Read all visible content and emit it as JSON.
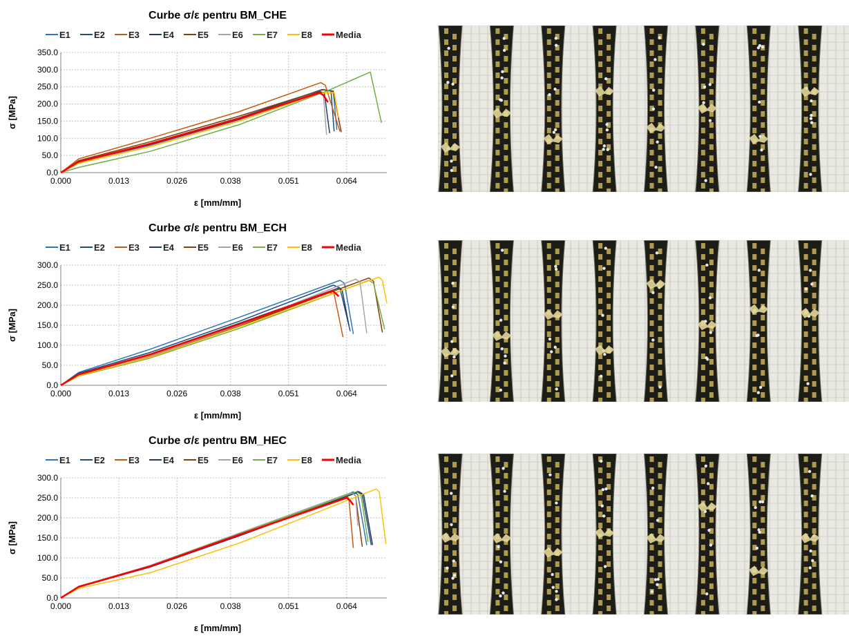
{
  "colors": {
    "E1": "#2e75b6",
    "E2": "#1f4e79",
    "E3": "#c55a11",
    "E4": "#203864",
    "E5": "#843c0c",
    "E6": "#a5a5a5",
    "E7": "#70ad47",
    "E8": "#ffc000",
    "Media": "#ff0000"
  },
  "chart_data": [
    {
      "type": "line",
      "title": "Curbe σ/ε pentru BM_CHE",
      "xlabel": "ε [mm/mm]",
      "ylabel": "σ [MPa]",
      "xlim": [
        0,
        0.073
      ],
      "ylim": [
        0,
        350
      ],
      "xticks": [
        "0.000",
        "0.013",
        "0.026",
        "0.038",
        "0.051",
        "0.064"
      ],
      "xtick_values": [
        0,
        0.013,
        0.026,
        0.038,
        0.051,
        0.064
      ],
      "yticks": [
        "0.0",
        "50.0",
        "100.0",
        "150.0",
        "200.0",
        "250.0",
        "300.0",
        "350.0"
      ],
      "grid": true,
      "legend": "top",
      "series": [
        {
          "name": "E1",
          "points": [
            [
              0,
              0
            ],
            [
              0.004,
              31
            ],
            [
              0.02,
              82
            ],
            [
              0.04,
              158
            ],
            [
              0.0585,
              242
            ],
            [
              0.061,
              238
            ],
            [
              0.0618,
              125
            ]
          ]
        },
        {
          "name": "E2",
          "points": [
            [
              0,
              0
            ],
            [
              0.004,
              32
            ],
            [
              0.02,
              85
            ],
            [
              0.04,
              160
            ],
            [
              0.0585,
              242
            ],
            [
              0.0605,
              237
            ],
            [
              0.0612,
              120
            ]
          ]
        },
        {
          "name": "E3",
          "points": [
            [
              0,
              0
            ],
            [
              0.004,
              40
            ],
            [
              0.02,
              100
            ],
            [
              0.04,
              178
            ],
            [
              0.0582,
              262
            ],
            [
              0.0592,
              255
            ],
            [
              0.0625,
              120
            ]
          ]
        },
        {
          "name": "E4",
          "points": [
            [
              0,
              0
            ],
            [
              0.004,
              30
            ],
            [
              0.02,
              80
            ],
            [
              0.04,
              155
            ],
            [
              0.058,
              236
            ],
            [
              0.059,
              232
            ],
            [
              0.0602,
              115
            ]
          ]
        },
        {
          "name": "E5",
          "points": [
            [
              0,
              0
            ],
            [
              0.004,
              35
            ],
            [
              0.02,
              90
            ],
            [
              0.04,
              165
            ],
            [
              0.0588,
              242
            ],
            [
              0.061,
              236
            ],
            [
              0.0628,
              118
            ]
          ]
        },
        {
          "name": "E6",
          "points": [
            [
              0,
              0
            ],
            [
              0.004,
              28
            ],
            [
              0.02,
              78
            ],
            [
              0.04,
              152
            ],
            [
              0.0575,
              232
            ],
            [
              0.0588,
              226
            ],
            [
              0.0595,
              110
            ]
          ]
        },
        {
          "name": "E7",
          "points": [
            [
              0,
              0
            ],
            [
              0.004,
              15
            ],
            [
              0.02,
              62
            ],
            [
              0.04,
              140
            ],
            [
              0.06,
              240
            ],
            [
              0.0693,
              293
            ],
            [
              0.0718,
              145
            ]
          ]
        },
        {
          "name": "E8",
          "points": [
            [
              0,
              0
            ],
            [
              0.004,
              27
            ],
            [
              0.02,
              75
            ],
            [
              0.04,
              150
            ],
            [
              0.058,
              232
            ],
            [
              0.0612,
              233
            ],
            [
              0.0622,
              160
            ]
          ]
        },
        {
          "name": "Media",
          "points": [
            [
              0,
              0
            ],
            [
              0.004,
              32
            ],
            [
              0.02,
              84
            ],
            [
              0.04,
              158
            ],
            [
              0.058,
              233
            ],
            [
              0.0588,
              225
            ],
            [
              0.0598,
              205
            ]
          ]
        }
      ]
    },
    {
      "type": "line",
      "title": "Curbe σ/ε pentru BM_ECH",
      "xlabel": "ε [mm/mm]",
      "ylabel": "σ [MPa]",
      "xlim": [
        0,
        0.073
      ],
      "ylim": [
        0,
        300
      ],
      "xticks": [
        "0.000",
        "0.013",
        "0.026",
        "0.038",
        "0.051",
        "0.064"
      ],
      "xtick_values": [
        0,
        0.013,
        0.026,
        0.038,
        0.051,
        0.064
      ],
      "yticks": [
        "0.0",
        "50.0",
        "100.0",
        "150.0",
        "200.0",
        "250.0",
        "300.0"
      ],
      "grid": true,
      "legend": "top",
      "series": [
        {
          "name": "E1",
          "points": [
            [
              0,
              0
            ],
            [
              0.004,
              32
            ],
            [
              0.02,
              90
            ],
            [
              0.04,
              170
            ],
            [
              0.0625,
              262
            ],
            [
              0.0635,
              255
            ],
            [
              0.0655,
              128
            ]
          ]
        },
        {
          "name": "E2",
          "points": [
            [
              0,
              0
            ],
            [
              0.004,
              30
            ],
            [
              0.02,
              82
            ],
            [
              0.04,
              160
            ],
            [
              0.061,
              250
            ],
            [
              0.0625,
              243
            ],
            [
              0.0648,
              135
            ]
          ]
        },
        {
          "name": "E3",
          "points": [
            [
              0,
              0
            ],
            [
              0.004,
              26
            ],
            [
              0.02,
              74
            ],
            [
              0.04,
              150
            ],
            [
              0.06,
              232
            ],
            [
              0.0612,
              228
            ],
            [
              0.0632,
              120
            ]
          ]
        },
        {
          "name": "E4",
          "points": [
            [
              0,
              0
            ],
            [
              0.004,
              27
            ],
            [
              0.02,
              78
            ],
            [
              0.04,
              155
            ],
            [
              0.062,
              242
            ],
            [
              0.063,
              238
            ],
            [
              0.0645,
              150
            ]
          ]
        },
        {
          "name": "E5",
          "points": [
            [
              0,
              0
            ],
            [
              0.004,
              25
            ],
            [
              0.02,
              72
            ],
            [
              0.04,
              148
            ],
            [
              0.069,
              268
            ],
            [
              0.07,
              260
            ],
            [
              0.072,
              132
            ]
          ]
        },
        {
          "name": "E6",
          "points": [
            [
              0,
              0
            ],
            [
              0.004,
              25
            ],
            [
              0.02,
              73
            ],
            [
              0.04,
              150
            ],
            [
              0.066,
              265
            ],
            [
              0.067,
              258
            ],
            [
              0.0685,
              130
            ]
          ]
        },
        {
          "name": "E7",
          "points": [
            [
              0,
              0
            ],
            [
              0.004,
              23
            ],
            [
              0.02,
              68
            ],
            [
              0.04,
              142
            ],
            [
              0.069,
              262
            ],
            [
              0.07,
              255
            ],
            [
              0.0725,
              140
            ]
          ]
        },
        {
          "name": "E8",
          "points": [
            [
              0,
              0
            ],
            [
              0.004,
              24
            ],
            [
              0.02,
              70
            ],
            [
              0.04,
              146
            ],
            [
              0.0712,
              270
            ],
            [
              0.072,
              262
            ],
            [
              0.073,
              205
            ]
          ]
        },
        {
          "name": "Media",
          "points": [
            [
              0,
              0
            ],
            [
              0.004,
              27
            ],
            [
              0.02,
              77
            ],
            [
              0.04,
              153
            ],
            [
              0.0608,
              236
            ],
            [
              0.0615,
              230
            ],
            [
              0.0622,
              222
            ]
          ]
        }
      ]
    },
    {
      "type": "line",
      "title": "Curbe σ/ε pentru BM_HEC",
      "xlabel": "ε [mm/mm]",
      "ylabel": "σ [MPa]",
      "xlim": [
        0,
        0.073
      ],
      "ylim": [
        0,
        300
      ],
      "xticks": [
        "0.000",
        "0.013",
        "0.026",
        "0.038",
        "0.051",
        "0.064"
      ],
      "xtick_values": [
        0,
        0.013,
        0.026,
        0.038,
        0.051,
        0.064
      ],
      "yticks": [
        "0.0",
        "50.0",
        "100.0",
        "150.0",
        "200.0",
        "250.0",
        "300.0"
      ],
      "grid": true,
      "legend": "top",
      "series": [
        {
          "name": "E1",
          "points": [
            [
              0,
              0
            ],
            [
              0.004,
              28
            ],
            [
              0.02,
              80
            ],
            [
              0.04,
              160
            ],
            [
              0.0655,
              265
            ],
            [
              0.0665,
              258
            ],
            [
              0.0685,
              132
            ]
          ]
        },
        {
          "name": "E2",
          "points": [
            [
              0,
              0
            ],
            [
              0.004,
              28
            ],
            [
              0.02,
              79
            ],
            [
              0.04,
              158
            ],
            [
              0.0665,
              266
            ],
            [
              0.0675,
              258
            ],
            [
              0.0695,
              132
            ]
          ]
        },
        {
          "name": "E3",
          "points": [
            [
              0,
              0
            ],
            [
              0.004,
              27
            ],
            [
              0.02,
              78
            ],
            [
              0.04,
              157
            ],
            [
              0.064,
              255
            ],
            [
              0.0645,
              248
            ],
            [
              0.0655,
              125
            ]
          ]
        },
        {
          "name": "E4",
          "points": [
            [
              0,
              0
            ],
            [
              0.004,
              27
            ],
            [
              0.02,
              77
            ],
            [
              0.04,
              155
            ],
            [
              0.0668,
              265
            ],
            [
              0.0678,
              258
            ],
            [
              0.0698,
              132
            ]
          ]
        },
        {
          "name": "E5",
          "points": [
            [
              0,
              0
            ],
            [
              0.004,
              28
            ],
            [
              0.02,
              79
            ],
            [
              0.04,
              158
            ],
            [
              0.0652,
              262
            ],
            [
              0.066,
              255
            ],
            [
              0.0675,
              128
            ]
          ]
        },
        {
          "name": "E6",
          "points": [
            [
              0,
              0
            ],
            [
              0.004,
              29
            ],
            [
              0.02,
              81
            ],
            [
              0.04,
              162
            ],
            [
              0.065,
              263
            ],
            [
              0.066,
              256
            ],
            [
              0.0665,
              180
            ]
          ]
        },
        {
          "name": "E7",
          "points": [
            [
              0,
              0
            ],
            [
              0.004,
              28
            ],
            [
              0.02,
              80
            ],
            [
              0.04,
              160
            ],
            [
              0.0662,
              265
            ],
            [
              0.0672,
              258
            ],
            [
              0.0688,
              140
            ]
          ]
        },
        {
          "name": "E8",
          "points": [
            [
              0,
              0
            ],
            [
              0.004,
              24
            ],
            [
              0.02,
              63
            ],
            [
              0.04,
              137
            ],
            [
              0.0706,
              272
            ],
            [
              0.0713,
              265
            ],
            [
              0.0728,
              135
            ]
          ]
        },
        {
          "name": "Media",
          "points": [
            [
              0,
              0
            ],
            [
              0.004,
              28
            ],
            [
              0.02,
              79
            ],
            [
              0.04,
              158
            ],
            [
              0.064,
              250
            ],
            [
              0.0648,
              243
            ],
            [
              0.0655,
              232
            ]
          ]
        }
      ]
    }
  ]
}
